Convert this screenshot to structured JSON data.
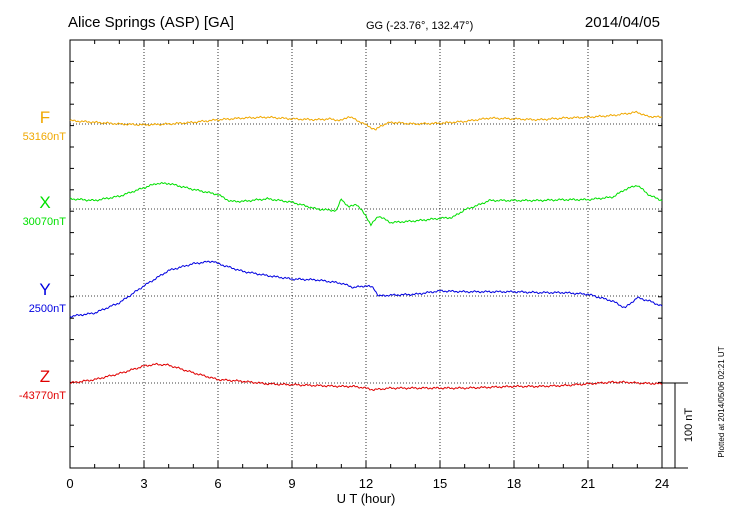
{
  "header": {
    "station": "Alice Springs (ASP)  [GA]",
    "coords": "GG (-23.76°, 132.47°)",
    "date": "2014/04/05"
  },
  "footer": {
    "xlabel": "U T (hour)",
    "plotted": "Plotted at 2014/05/06 02:21  UT",
    "scale_label": "100 nT"
  },
  "colors": {
    "F": "#f0a800",
    "X": "#00e000",
    "Y": "#0000e0",
    "Z": "#e00000"
  },
  "chart_data": {
    "type": "line",
    "title": "Alice Springs (ASP)  [GA]",
    "xlabel": "U T (hour)",
    "ylabel": "",
    "xlim": [
      0,
      24
    ],
    "x_ticks": [
      "0",
      "3",
      "6",
      "9",
      "12",
      "15",
      "18",
      "21",
      "24"
    ],
    "scale_bar_nT": 100,
    "grid": true,
    "series": [
      {
        "name": "F",
        "baseline_label": "53160nT",
        "color": "#f0a800",
        "x": [
          0,
          1,
          2,
          3,
          4,
          5,
          6,
          7,
          8,
          9,
          10,
          10.5,
          11,
          11.3,
          11.8,
          12.2,
          12.4,
          12.6,
          13,
          14,
          15,
          16,
          17,
          18,
          19,
          20,
          21,
          22,
          22.5,
          23,
          23.4,
          24
        ],
        "y": [
          4,
          2,
          0,
          -1,
          0,
          2,
          5,
          7,
          8,
          6,
          5,
          6,
          4,
          9,
          2,
          -4,
          -7,
          -2,
          2,
          0,
          1,
          3,
          7,
          6,
          5,
          7,
          8,
          10,
          12,
          14,
          9,
          8
        ]
      },
      {
        "name": "X",
        "baseline_label": "30070nT",
        "color": "#00e000",
        "x": [
          0,
          1,
          2,
          3,
          3.5,
          4,
          5,
          6,
          6.5,
          7,
          8,
          9,
          10,
          10.8,
          11,
          11.3,
          11.6,
          12,
          12.2,
          12.5,
          13,
          14,
          15,
          15.5,
          16,
          16.5,
          17,
          18,
          19,
          20,
          21,
          22,
          22.5,
          23,
          23.5,
          24
        ],
        "y": [
          2,
          0,
          5,
          15,
          20,
          20,
          13,
          7,
          -1,
          -1,
          2,
          -2,
          -10,
          -12,
          2,
          -8,
          -4,
          -18,
          -29,
          -18,
          -26,
          -24,
          -21,
          -20,
          -11,
          -6,
          0,
          0,
          0,
          1,
          1,
          4,
          13,
          18,
          6,
          0
        ],
        "offset_nT": 10
      },
      {
        "name": "Y",
        "baseline_label": "2500nT",
        "color": "#0000e0",
        "x": [
          0,
          1,
          2,
          3,
          4,
          5,
          5.8,
          6,
          7,
          8,
          9,
          10,
          11,
          11.5,
          12,
          12.3,
          12.5,
          13,
          14,
          15,
          16,
          17,
          18,
          19,
          20,
          21,
          22,
          22.5,
          23,
          23.5,
          24
        ],
        "y": [
          -24,
          -20,
          -8,
          12,
          30,
          38,
          41,
          38,
          29,
          24,
          20,
          19,
          15,
          10,
          12,
          10,
          0,
          1,
          2,
          6,
          5,
          5,
          5,
          4,
          4,
          2,
          -6,
          -14,
          -2,
          -6,
          -12
        ]
      },
      {
        "name": "Z",
        "baseline_label": "-43770nT",
        "color": "#e00000",
        "x": [
          0,
          1,
          2,
          3,
          3.5,
          4,
          5,
          6,
          7,
          8,
          9,
          10,
          11,
          11.5,
          12,
          12.3,
          13,
          14,
          15,
          16,
          17,
          18,
          19,
          20,
          21,
          22,
          22.5,
          23,
          24
        ],
        "y": [
          0,
          4,
          11,
          20,
          22,
          21,
          12,
          4,
          2,
          -1,
          -2,
          -3,
          -4,
          -4,
          -6,
          -8,
          -6,
          -6,
          -6,
          -6,
          -5,
          -4,
          -4,
          -3,
          -1,
          1,
          1,
          0,
          -1
        ]
      }
    ]
  }
}
